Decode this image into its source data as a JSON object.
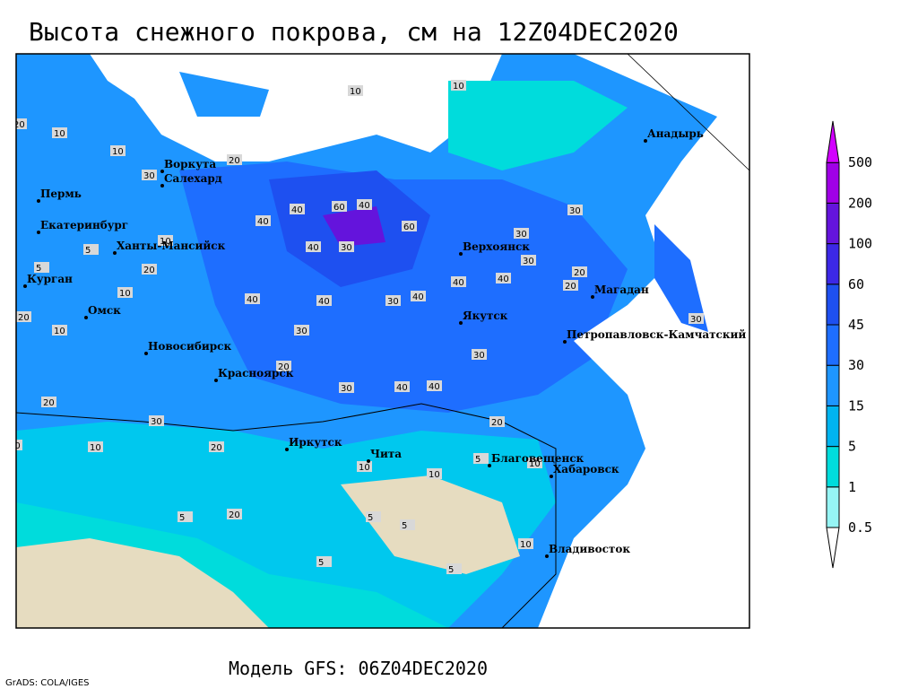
{
  "title": "Высота снежного покрова, см на 12Z04DEC2020",
  "map": {
    "cities": [
      "Воркута",
      "Салехард",
      "Пермь",
      "Екатеринбург",
      "Ханты-Мансийск",
      "Курган",
      "Омск",
      "Новосибирск",
      "Красноярск",
      "Иркутск",
      "Чита",
      "Благовещенск",
      "Хабаровск",
      "Владивосток",
      "Якутск",
      "Верхоянск",
      "Магадан",
      "Петропавловск-Камчатский",
      "Анадырь"
    ],
    "contour_labels": [
      "10",
      "5",
      "10",
      "5",
      "10",
      "10",
      "20",
      "30",
      "20",
      "10",
      "20",
      "40",
      "40",
      "60",
      "40",
      "60",
      "40",
      "30",
      "40",
      "40",
      "30",
      "30",
      "40",
      "30",
      "40",
      "40",
      "20",
      "30",
      "40",
      "40",
      "30",
      "20",
      "30",
      "30",
      "20",
      "20",
      "10",
      "10",
      "20",
      "30",
      "20",
      "10",
      "10",
      "5",
      "5",
      "10",
      "5",
      "20",
      "10",
      "5",
      "10",
      "5",
      "5",
      "10",
      "20",
      "30"
    ]
  },
  "legend": {
    "levels": [
      0.5,
      1,
      5,
      15,
      30,
      45,
      60,
      100,
      200,
      500
    ],
    "colors": [
      "#ffffff",
      "#96f5f5",
      "#00dcdc",
      "#00b4f0",
      "#1e96ff",
      "#1e6eff",
      "#1e50f0",
      "#3c28e6",
      "#6414dc",
      "#a000e6",
      "#d200ff"
    ]
  },
  "footer": {
    "model": "Модель GFS: 06Z04DEC2020",
    "credit": "GrADS: COLA/IGES"
  }
}
